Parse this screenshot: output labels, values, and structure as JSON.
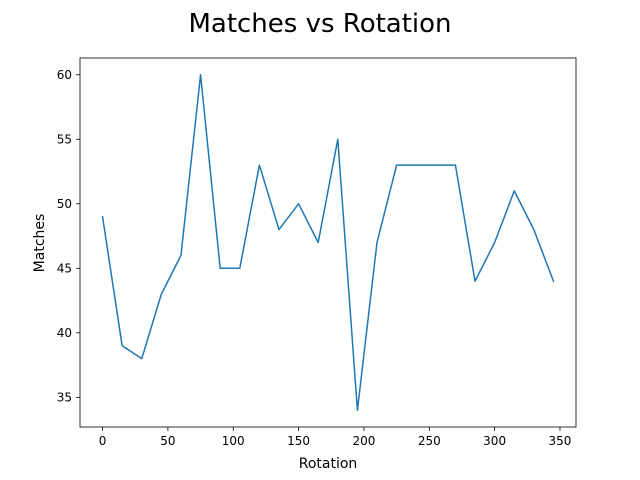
{
  "chart_data": {
    "type": "line",
    "title": "Matches vs Rotation",
    "xlabel": "Rotation",
    "ylabel": "Matches",
    "xlim": [
      -17.25,
      362.25
    ],
    "ylim": [
      32.7,
      61.3
    ],
    "xticks": [
      0,
      50,
      100,
      150,
      200,
      250,
      300,
      350
    ],
    "yticks": [
      35,
      40,
      45,
      50,
      55,
      60
    ],
    "grid": false,
    "series": [
      {
        "color": "#1f77b4",
        "x": [
          0,
          15,
          30,
          45,
          60,
          75,
          90,
          105,
          120,
          135,
          150,
          165,
          180,
          195,
          210,
          225,
          240,
          255,
          270,
          285,
          300,
          315,
          330,
          345
        ],
        "y": [
          49,
          39,
          38,
          43,
          46,
          60,
          45,
          45,
          53,
          48,
          50,
          47,
          55,
          34,
          47,
          53,
          53,
          53,
          53,
          44,
          47,
          51,
          48,
          44
        ]
      }
    ]
  }
}
